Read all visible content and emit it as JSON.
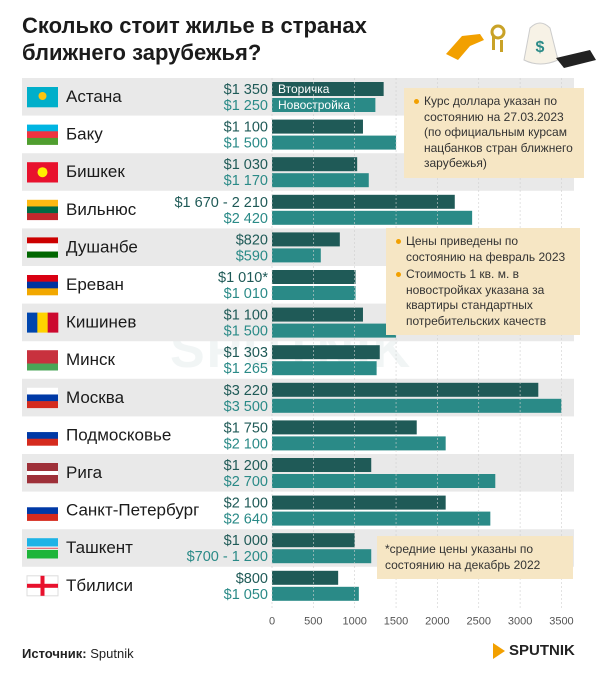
{
  "header": {
    "title": "Сколько стоит жилье в странах ближнего зарубежья?"
  },
  "notes": {
    "currency": "Курс доллара указан по состоянию на 27.03.2023 (по официальным курсам нацбанков стран ближнего зарубежья)",
    "prices_date": "Цены приведены по состоянию на февраль 2023",
    "cost_basis": "Стоимость 1 кв. м. в новостройках указана за квартиры стандартных потребительских качеств",
    "averages": "*средние цены указаны по состоянию на декабрь 2022"
  },
  "footer": {
    "source_label": "Источник:",
    "source_value": "Sputnik",
    "brand": "SPUTNIK"
  },
  "watermark": "SPUTNIK",
  "colors": {
    "secondary": "#1f5a57",
    "new_build": "#2a8a87",
    "row_shade": "#e9e9e9",
    "note_bg": "#f6e6c4",
    "accent": "#f2a000"
  },
  "chart_data": {
    "type": "bar",
    "orientation": "horizontal",
    "x_ticks": [
      0,
      500,
      1000,
      1500,
      2000,
      2500,
      3000,
      3500
    ],
    "xlim": [
      0,
      3550
    ],
    "series": [
      {
        "name": "Вторичка",
        "color": "#1f5a57"
      },
      {
        "name": "Новостройка",
        "color": "#2a8a87"
      }
    ],
    "rows": [
      {
        "city": "Астана",
        "flag": "kz",
        "secondary": 1350,
        "new_build": 1250,
        "sec_label": "$1 350",
        "new_label": "$1 250"
      },
      {
        "city": "Баку",
        "flag": "az",
        "secondary": 1100,
        "new_build": 1500,
        "sec_label": "$1 100",
        "new_label": "$1 500"
      },
      {
        "city": "Бишкек",
        "flag": "kg",
        "secondary": 1030,
        "new_build": 1170,
        "sec_label": "$1 030",
        "new_label": "$1 170"
      },
      {
        "city": "Вильнюс",
        "flag": "lt",
        "secondary": 2210,
        "new_build": 2420,
        "sec_label": "$1 670 - 2 210",
        "new_label": "$2 420"
      },
      {
        "city": "Душанбе",
        "flag": "tj",
        "secondary": 820,
        "new_build": 590,
        "sec_label": "$820",
        "new_label": "$590"
      },
      {
        "city": "Ереван",
        "flag": "am",
        "secondary": 1010,
        "new_build": 1010,
        "sec_label": "$1 010*",
        "new_label": "$1 010"
      },
      {
        "city": "Кишинев",
        "flag": "md",
        "secondary": 1100,
        "new_build": 1500,
        "sec_label": "$1 100",
        "new_label": "$1 500"
      },
      {
        "city": "Минск",
        "flag": "by",
        "secondary": 1303,
        "new_build": 1265,
        "sec_label": "$1 303",
        "new_label": "$1 265"
      },
      {
        "city": "Москва",
        "flag": "ru",
        "secondary": 3220,
        "new_build": 3500,
        "sec_label": "$3 220",
        "new_label": "$3 500"
      },
      {
        "city": "Подмосковье",
        "flag": "ru",
        "secondary": 1750,
        "new_build": 2100,
        "sec_label": "$1 750",
        "new_label": "$2 100"
      },
      {
        "city": "Рига",
        "flag": "lv",
        "secondary": 1200,
        "new_build": 2700,
        "sec_label": "$1 200",
        "new_label": "$2 700"
      },
      {
        "city": "Санкт-Петербург",
        "flag": "ru",
        "secondary": 2100,
        "new_build": 2640,
        "sec_label": "$2 100",
        "new_label": "$2 640"
      },
      {
        "city": "Ташкент",
        "flag": "uz",
        "secondary": 1000,
        "new_build": 1200,
        "sec_label": "$1 000",
        "new_label": "$700 - 1 200"
      },
      {
        "city": "Тбилиси",
        "flag": "ge",
        "secondary": 800,
        "new_build": 1050,
        "sec_label": "$800",
        "new_label": "$1 050"
      }
    ]
  }
}
